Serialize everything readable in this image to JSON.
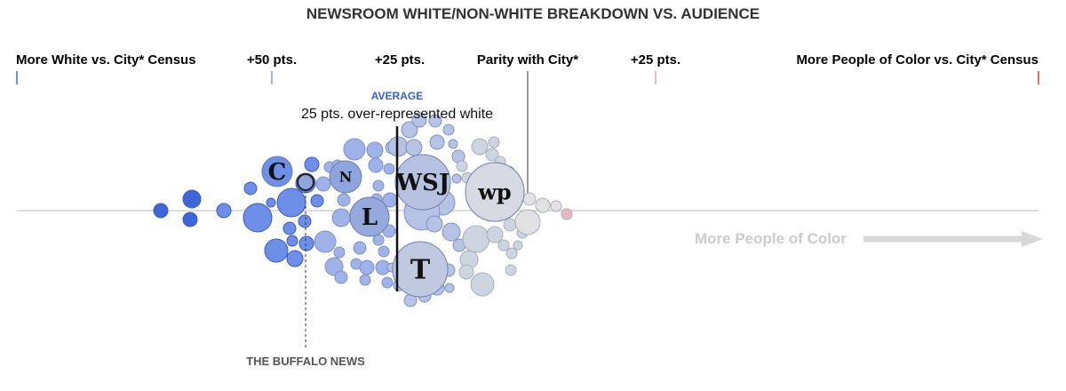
{
  "chart_data": {
    "type": "scatter",
    "title": "NEWSROOM WHITE/NON-WHITE BREAKDOWN VS. AUDIENCE",
    "xlim": [
      -60,
      35
    ],
    "scale_labels": [
      {
        "text": "More White vs. City* Census",
        "color": "#3b6fd8"
      },
      {
        "text": "+50 pts.",
        "color": "#7e9ee0"
      },
      {
        "text": "+25 pts.",
        "color": "#a9bde6"
      },
      {
        "text": "Parity with City*",
        "color": "#8f8f8f"
      },
      {
        "text": "+25 pts.",
        "color": "#e8a6aa"
      },
      {
        "text": "More People of Color vs. City* Census",
        "color": "#e53a3a"
      }
    ],
    "average": {
      "label": "AVERAGE",
      "note": "25 pts. over-represented white",
      "value": 25
    },
    "callout": {
      "text": "THE BUFFALO NEWS"
    },
    "direction_label": "More People of Color",
    "colors": {
      "strong_white": "#6d8fe8",
      "white": "#9fb3e8",
      "near_parity": "#c9d0e0",
      "parity": "#e2e2e2",
      "poc": "#e8b8bc",
      "axis": "#bbbbbb"
    },
    "logos": [
      {
        "mark": "C",
        "over_white_pts": 46
      },
      {
        "mark": "N",
        "over_white_pts": 35
      },
      {
        "mark": "L",
        "over_white_pts": 32
      },
      {
        "mark": "WSJ",
        "over_white_pts": 17
      },
      {
        "mark": "wp",
        "over_white_pts": 5
      },
      {
        "mark": "T",
        "over_white_pts": 17
      }
    ]
  }
}
